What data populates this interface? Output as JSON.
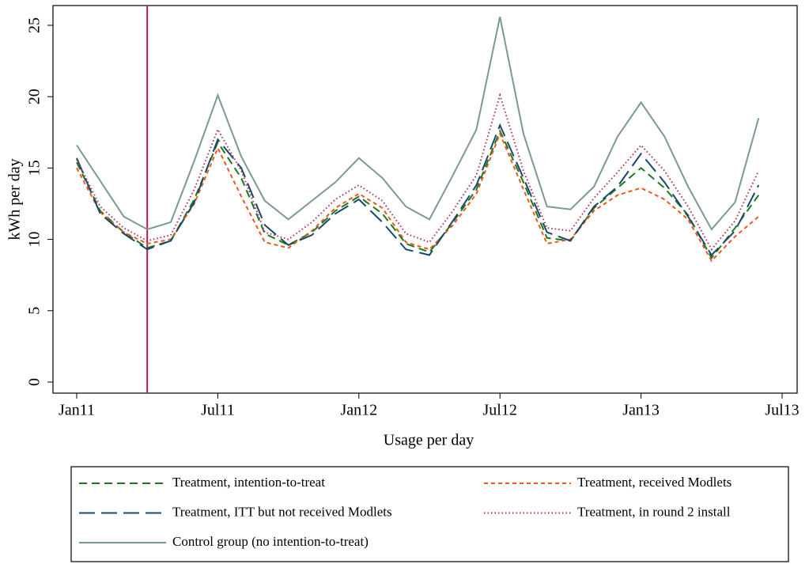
{
  "chart_data": {
    "type": "line",
    "xlabel": "Usage per day",
    "ylabel": "kWh per day",
    "x": [
      "2011-01",
      "2011-02",
      "2011-03",
      "2011-04",
      "2011-05",
      "2011-06",
      "2011-07",
      "2011-08",
      "2011-09",
      "2011-10",
      "2011-11",
      "2011-12",
      "2012-01",
      "2012-02",
      "2012-03",
      "2012-04",
      "2012-05",
      "2012-06",
      "2012-07",
      "2012-08",
      "2012-09",
      "2012-10",
      "2012-11",
      "2012-12",
      "2013-01",
      "2013-02",
      "2013-03",
      "2013-04",
      "2013-05",
      "2013-06"
    ],
    "xlim": [
      "2011-01",
      "2013-07"
    ],
    "xticks": [
      {
        "value": "2011-01",
        "label": "Jan11"
      },
      {
        "value": "2011-07",
        "label": "Jul11"
      },
      {
        "value": "2012-01",
        "label": "Jan12"
      },
      {
        "value": "2012-07",
        "label": "Jul12"
      },
      {
        "value": "2013-01",
        "label": "Jan13"
      },
      {
        "value": "2013-07",
        "label": "Jul13"
      }
    ],
    "ylim": [
      0,
      25
    ],
    "yticks": [
      0,
      5,
      10,
      15,
      20,
      25
    ],
    "vline": {
      "x": "2011-04",
      "color": "#c0174f"
    },
    "series": [
      {
        "name": "Treatment, intention-to-treat",
        "color": "#1a7a1a",
        "dash": "dash",
        "values": [
          15.4,
          12.0,
          10.5,
          9.4,
          9.9,
          12.8,
          16.8,
          14.3,
          10.4,
          9.6,
          10.5,
          12.0,
          13.0,
          11.8,
          9.7,
          9.1,
          11.2,
          13.5,
          17.6,
          14.0,
          10.1,
          9.9,
          12.2,
          13.6,
          15.0,
          13.6,
          11.7,
          8.7,
          10.8,
          13.1
        ]
      },
      {
        "name": "Treatment, received Modlets",
        "color": "#f0561a",
        "dash": "shortdash",
        "values": [
          15.0,
          11.9,
          10.5,
          9.7,
          10.0,
          12.5,
          16.4,
          13.0,
          9.8,
          9.4,
          10.6,
          12.2,
          13.2,
          12.2,
          9.8,
          9.3,
          11.0,
          13.2,
          17.4,
          13.5,
          9.7,
          10.0,
          12.0,
          13.1,
          13.6,
          12.8,
          11.4,
          8.5,
          10.2,
          11.6
        ]
      },
      {
        "name": "Treatment, ITT but not received Modlets",
        "color": "#1a476f",
        "dash": "longdash",
        "values": [
          15.7,
          11.8,
          10.4,
          9.3,
          9.9,
          12.6,
          17.0,
          15.0,
          11.0,
          9.6,
          10.3,
          11.8,
          12.8,
          11.2,
          9.3,
          8.9,
          11.3,
          13.8,
          18.0,
          14.3,
          10.5,
          9.9,
          12.3,
          13.7,
          16.0,
          14.0,
          11.6,
          8.9,
          10.6,
          13.8
        ]
      },
      {
        "name": "Treatment, in round 2 install",
        "color": "#b03050",
        "dash": "dot",
        "values": [
          15.6,
          12.3,
          10.8,
          9.9,
          10.3,
          13.5,
          17.7,
          14.8,
          10.5,
          10.0,
          11.2,
          12.8,
          13.8,
          12.7,
          10.4,
          9.8,
          12.0,
          14.5,
          20.1,
          14.8,
          10.8,
          10.6,
          12.9,
          14.7,
          16.6,
          14.8,
          12.3,
          9.3,
          11.3,
          14.8
        ]
      },
      {
        "name": "Control group (no intention-to-treat)",
        "color": "#7a9a90",
        "dash": "solid",
        "values": [
          16.6,
          14.1,
          11.6,
          10.7,
          11.2,
          15.5,
          20.1,
          15.8,
          12.7,
          11.4,
          12.7,
          14.0,
          15.7,
          14.3,
          12.3,
          11.4,
          14.5,
          17.7,
          25.6,
          17.4,
          12.3,
          12.1,
          13.7,
          17.2,
          19.6,
          17.2,
          13.7,
          10.7,
          12.6,
          18.5
        ]
      }
    ]
  }
}
